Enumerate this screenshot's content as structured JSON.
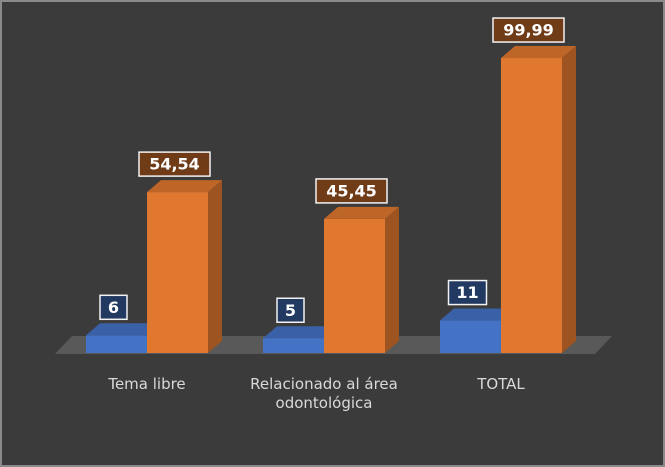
{
  "chart_data": {
    "type": "bar3d",
    "categories": [
      "Tema libre",
      "Relacionado al área odontológica",
      "TOTAL"
    ],
    "series": [
      {
        "color": "#4472c4",
        "values": [
          6,
          5,
          11
        ],
        "value_labels": [
          "6",
          "5",
          "11"
        ]
      },
      {
        "color": "#e0782f",
        "values": [
          54.54,
          45.45,
          99.99
        ],
        "value_labels": [
          "54,54",
          "45,45",
          "99,99"
        ]
      }
    ]
  }
}
